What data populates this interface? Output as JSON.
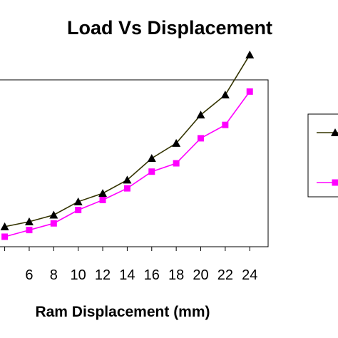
{
  "chart_data": {
    "type": "line",
    "title": "Load Vs Displacement",
    "xlabel": "Ram Displacement (mm)",
    "ylabel": "",
    "xlim": [
      3.5,
      25.5
    ],
    "ylim": [
      0,
      100
    ],
    "x_ticks": [
      "6",
      "8",
      "10",
      "12",
      "14",
      "16",
      "18",
      "20",
      "22",
      "24"
    ],
    "grid": false,
    "legend_position": "right",
    "series": [
      {
        "color": "#000000",
        "line_color": "#333300",
        "marker": "triangle",
        "x": [
          4,
          6,
          8,
          10,
          12,
          14,
          16,
          18,
          20,
          22,
          24
        ],
        "y": [
          12,
          15,
          19,
          27,
          32,
          40,
          53,
          62,
          79,
          91,
          115
        ]
      },
      {
        "color": "#ff00ff",
        "line_color": "#ff00ff",
        "marker": "square",
        "x": [
          4,
          6,
          8,
          10,
          12,
          14,
          16,
          18,
          20,
          22,
          24
        ],
        "y": [
          6,
          10,
          14,
          22,
          28,
          35,
          45,
          50,
          65,
          73,
          93
        ]
      }
    ]
  }
}
